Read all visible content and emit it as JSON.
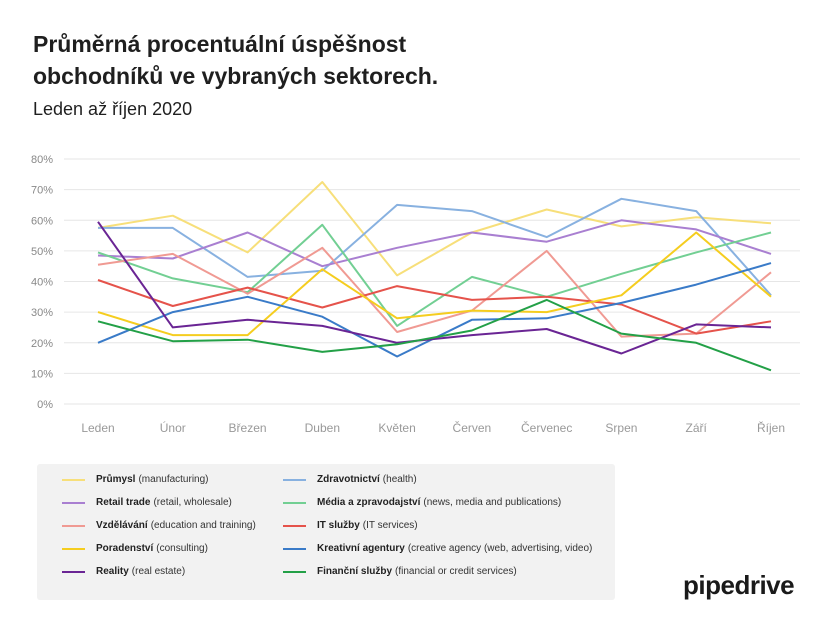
{
  "title_lines": [
    "Průměrná procentuální úspěšnost",
    "obchodníků ve vybraných sektorech."
  ],
  "subtitle": "Leden až říjen 2020",
  "logo": "pipedrive",
  "chart_data": {
    "type": "line",
    "title": "Průměrná procentuální úspěšnost obchodníků ve vybraných sektorech.",
    "subtitle": "Leden až říjen 2020",
    "categories": [
      "Leden",
      "Únor",
      "Březen",
      "Duben",
      "Květen",
      "Červen",
      "Červenec",
      "Srpen",
      "Září",
      "Říjen"
    ],
    "ylim": [
      0,
      80
    ],
    "yticks": [
      0,
      10,
      20,
      30,
      40,
      50,
      60,
      70,
      80
    ],
    "ytick_labels": [
      "0%",
      "10%",
      "20%",
      "30%",
      "40%",
      "50%",
      "60%",
      "70%",
      "80%"
    ],
    "grid": true,
    "legend_position": "bottom",
    "series": [
      {
        "name": "Průmysl",
        "detail": "(manufacturing)",
        "color": "#f7df7a",
        "values": [
          57.5,
          61.5,
          49.5,
          72.5,
          42,
          56,
          63.5,
          58,
          61,
          59
        ]
      },
      {
        "name": "Zdravotnictví",
        "detail": "(health)",
        "color": "#88b1e0",
        "values": [
          57.5,
          57.5,
          41.5,
          43.5,
          65,
          63,
          54.5,
          67,
          63,
          35.5
        ]
      },
      {
        "name": "Retail trade",
        "detail": "(retail, wholesale)",
        "color": "#a97fd1",
        "values": [
          48.5,
          47.5,
          56,
          45,
          51,
          56,
          53,
          60,
          57,
          49
        ]
      },
      {
        "name": "Média a zpravodajství",
        "detail": "(news, media and publications)",
        "color": "#72cf93",
        "values": [
          49.5,
          41,
          36.5,
          58.5,
          25.5,
          41.5,
          35,
          42.5,
          49.5,
          56
        ]
      },
      {
        "name": "Vzdělávání",
        "detail": "(education and training)",
        "color": "#f09a93",
        "values": [
          45.5,
          49,
          36,
          51,
          23.5,
          30.5,
          50,
          22,
          23,
          43
        ]
      },
      {
        "name": "IT služby",
        "detail": "(IT services)",
        "color": "#e5534b",
        "values": [
          40.5,
          32,
          38,
          31.5,
          38.5,
          34,
          35,
          32.5,
          23,
          27
        ]
      },
      {
        "name": "Poradenství",
        "detail": "(consulting)",
        "color": "#f5cd1f",
        "values": [
          30,
          22.5,
          22.5,
          44,
          28,
          30.5,
          30,
          35.5,
          56,
          35
        ]
      },
      {
        "name": "Kreativní agentury",
        "detail": "(creative agency (web, advertising, video)",
        "color": "#3a7bc8",
        "values": [
          20,
          30,
          35,
          28.5,
          15.5,
          27.5,
          28,
          33,
          39,
          46
        ]
      },
      {
        "name": "Reality",
        "detail": "(real estate)",
        "color": "#6a2594",
        "values": [
          59.5,
          25,
          27.5,
          25.5,
          20,
          22.5,
          24.5,
          16.5,
          26,
          25
        ]
      },
      {
        "name": "Finanční služby",
        "detail": "(financial or credit services)",
        "color": "#23a047",
        "values": [
          27,
          20.5,
          21,
          17,
          19.5,
          24,
          34,
          23,
          20,
          11
        ]
      }
    ]
  }
}
